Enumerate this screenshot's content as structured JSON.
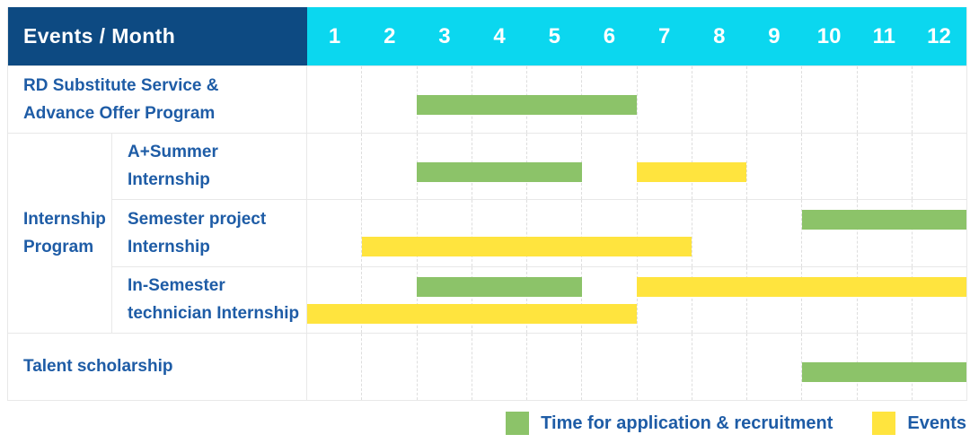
{
  "header": {
    "title": "Events / Month"
  },
  "colors": {
    "navy": "#0d4a82",
    "cyan": "#0bd7ef",
    "green": "#8cc369",
    "yellow": "#ffe43e",
    "label_blue": "#1e5ca6",
    "grid": "#e8e8e8",
    "grid_dash": "#dedede"
  },
  "chart_data": {
    "type": "gantt",
    "title": "Events / Month",
    "xlabel": "Month",
    "months": [
      "1",
      "2",
      "3",
      "4",
      "5",
      "6",
      "7",
      "8",
      "9",
      "10",
      "11",
      "12"
    ],
    "x_range": [
      1,
      12
    ],
    "legend_position": "bottom-right",
    "legend": [
      {
        "label": "Time for application & recruitment",
        "color": "green"
      },
      {
        "label": "Events",
        "color": "yellow"
      }
    ],
    "group_labels": {
      "Internship Program": [
        "Internship",
        "Program"
      ]
    },
    "rows": [
      {
        "group": null,
        "label_lines": [
          "RD Substitute Service &",
          "Advance Offer Program"
        ],
        "bars": [
          {
            "color": "green",
            "start_month": 3,
            "end_month": 6,
            "line": "middle"
          }
        ]
      },
      {
        "group": "Internship Program",
        "label_lines": [
          "A+Summer",
          "Internship"
        ],
        "bars": [
          {
            "color": "green",
            "start_month": 3,
            "end_month": 5,
            "line": "middle"
          },
          {
            "color": "yellow",
            "start_month": 7,
            "end_month": 8,
            "line": "middle"
          }
        ]
      },
      {
        "group": "Internship Program",
        "label_lines": [
          "Semester project",
          "Internship"
        ],
        "bars": [
          {
            "color": "green",
            "start_month": 10,
            "end_month": 12,
            "line": "top"
          },
          {
            "color": "yellow",
            "start_month": 2,
            "end_month": 7,
            "line": "bottom"
          }
        ]
      },
      {
        "group": "Internship Program",
        "label_lines": [
          "In-Semester",
          "technician Internship"
        ],
        "bars": [
          {
            "color": "green",
            "start_month": 3,
            "end_month": 5,
            "line": "top"
          },
          {
            "color": "yellow",
            "start_month": 7,
            "end_month": 12,
            "line": "top"
          },
          {
            "color": "yellow",
            "start_month": 1,
            "end_month": 6,
            "line": "bottom"
          }
        ]
      },
      {
        "group": null,
        "label_lines": [
          "Talent scholarship"
        ],
        "bars": [
          {
            "color": "green",
            "start_month": 10,
            "end_month": 12,
            "line": "middle"
          }
        ]
      }
    ]
  }
}
